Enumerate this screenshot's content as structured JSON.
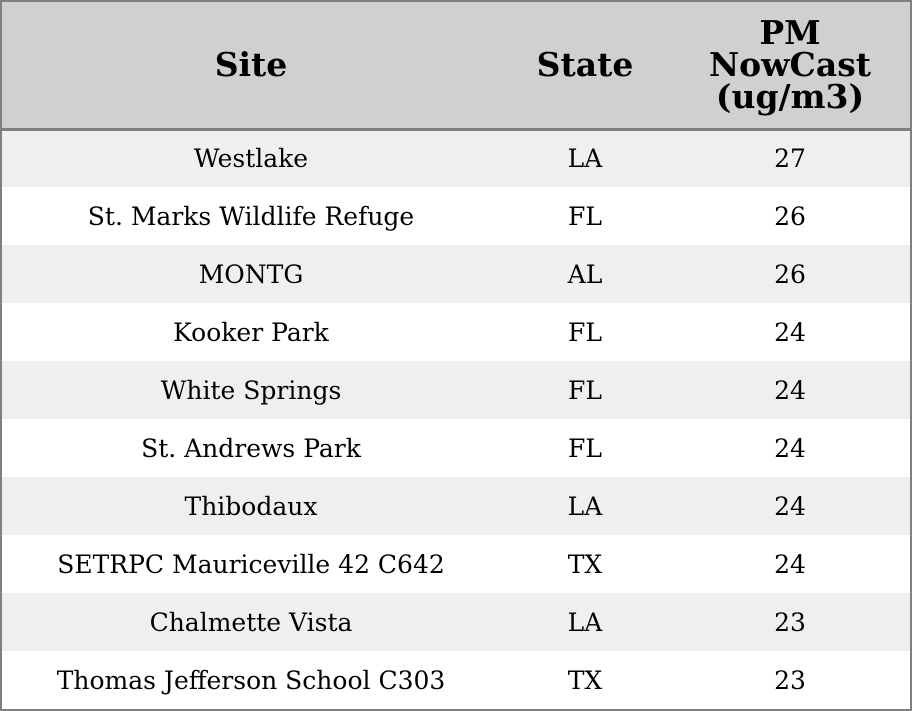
{
  "chart_data": {
    "type": "table",
    "columns": [
      "Site",
      "State",
      "PM NowCast (ug/m3)"
    ],
    "header_lines": {
      "site": "Site",
      "state": "State",
      "pm": [
        "PM",
        "NowCast",
        "(ug/m3)"
      ]
    },
    "rows": [
      {
        "site": "Westlake",
        "state": "LA",
        "pm": 27
      },
      {
        "site": "St. Marks Wildlife Refuge",
        "state": "FL",
        "pm": 26
      },
      {
        "site": "MONTG",
        "state": "AL",
        "pm": 26
      },
      {
        "site": "Kooker Park",
        "state": "FL",
        "pm": 24
      },
      {
        "site": "White Springs",
        "state": "FL",
        "pm": 24
      },
      {
        "site": "St. Andrews Park",
        "state": "FL",
        "pm": 24
      },
      {
        "site": "Thibodaux",
        "state": "LA",
        "pm": 24
      },
      {
        "site": "SETRPC Mauriceville 42 C642",
        "state": "TX",
        "pm": 24
      },
      {
        "site": "Chalmette Vista",
        "state": "LA",
        "pm": 23
      },
      {
        "site": "Thomas Jefferson School C303",
        "state": "TX",
        "pm": 23
      }
    ]
  },
  "colors": {
    "header_bg": "#d0d0d0",
    "row_alt_bg": "#efefef",
    "row_bg": "#ffffff",
    "border": "#808080"
  }
}
